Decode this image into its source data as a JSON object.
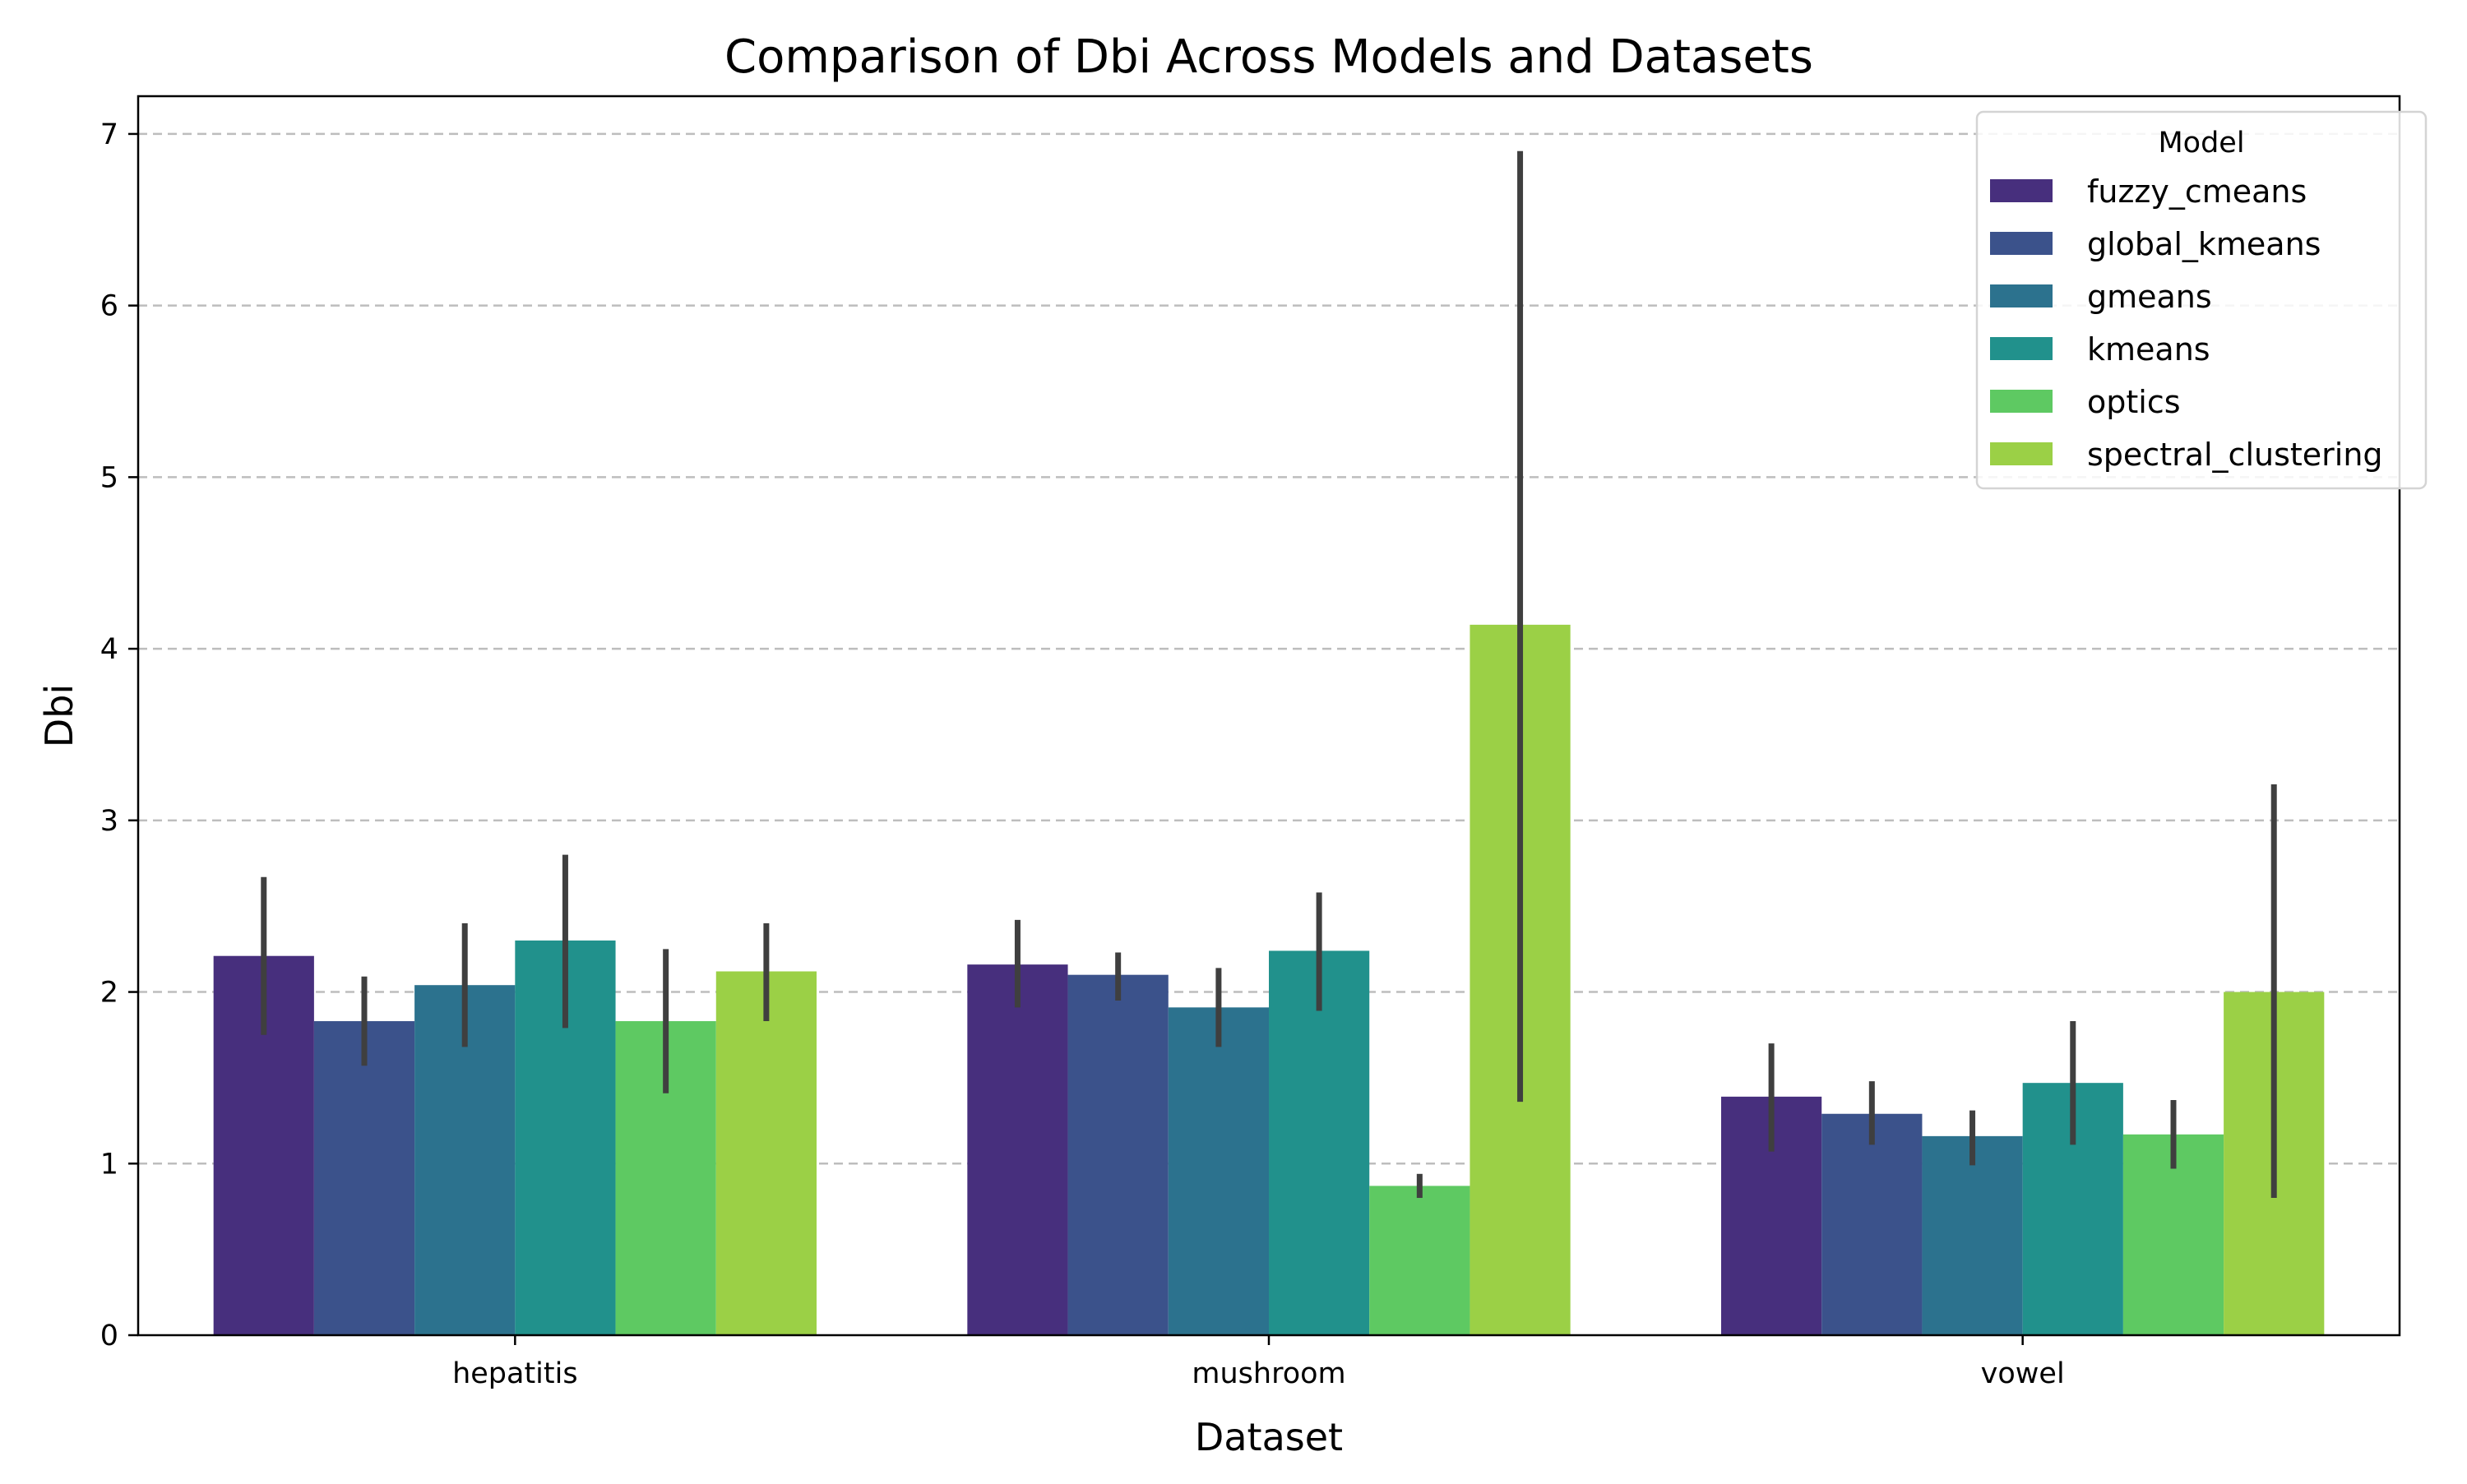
{
  "chart_data": {
    "type": "bar",
    "title": "Comparison of Dbi Across Models and Datasets",
    "xlabel": "Dataset",
    "ylabel": "Dbi",
    "ylim": [
      0,
      7.22
    ],
    "yticks": [
      "0",
      "1",
      "2",
      "3",
      "4",
      "5",
      "6",
      "7"
    ],
    "grid": "y-dashed",
    "legend": {
      "title": "Model",
      "placement": "top-right"
    },
    "categories": [
      "hepatitis",
      "mushroom",
      "vowel"
    ],
    "series": [
      {
        "name": "fuzzy_cmeans",
        "color": "#472f7d",
        "values": [
          2.21,
          2.16,
          1.39
        ],
        "err_low": [
          1.75,
          1.91,
          1.07
        ],
        "err_high": [
          2.67,
          2.42,
          1.7
        ]
      },
      {
        "name": "global_kmeans",
        "color": "#3b528b",
        "values": [
          1.83,
          2.1,
          1.29
        ],
        "err_low": [
          1.57,
          1.95,
          1.11
        ],
        "err_high": [
          2.09,
          2.23,
          1.48
        ]
      },
      {
        "name": "gmeans",
        "color": "#2c728e",
        "values": [
          2.04,
          1.91,
          1.16
        ],
        "err_low": [
          1.68,
          1.68,
          0.99
        ],
        "err_high": [
          2.4,
          2.14,
          1.31
        ]
      },
      {
        "name": "kmeans",
        "color": "#21918c",
        "values": [
          2.3,
          2.24,
          1.47
        ],
        "err_low": [
          1.79,
          1.89,
          1.11
        ],
        "err_high": [
          2.8,
          2.58,
          1.83
        ]
      },
      {
        "name": "optics",
        "color": "#5ec962",
        "values": [
          1.83,
          0.87,
          1.17
        ],
        "err_low": [
          1.41,
          0.8,
          0.97
        ],
        "err_high": [
          2.25,
          0.94,
          1.37
        ]
      },
      {
        "name": "spectral_clustering",
        "color": "#9bd046",
        "values": [
          2.12,
          4.14,
          2.0
        ],
        "err_low": [
          1.83,
          1.36,
          0.8
        ],
        "err_high": [
          2.4,
          6.9,
          3.21
        ]
      }
    ]
  }
}
